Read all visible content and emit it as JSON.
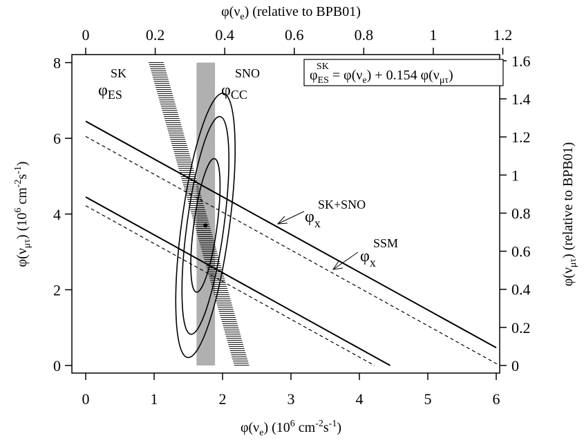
{
  "chart_data": {
    "type": "line",
    "xlabel": {
      "main": "φ(ν",
      "sub": "e",
      "unit": ") (10",
      "sup": "6",
      "tail": " cm",
      "sup2": "-2",
      "tail2": "s",
      "sup3": "-1",
      "end": ")"
    },
    "ylabel": {
      "main": "φ(ν",
      "sub": "μτ",
      "unit": ") (10",
      "sup": "6",
      "tail": " cm",
      "sup2": "-2",
      "tail2": "s",
      "sup3": "-1",
      "end": ")"
    },
    "top_xlabel": {
      "main": "φ(ν",
      "sub": "e",
      "end": ") (relative to BPB01)"
    },
    "right_ylabel": {
      "main": "φ(ν",
      "sub": "μτ",
      "end": ") (relative to BPB01)"
    },
    "xlim": [
      0,
      6
    ],
    "ylim": [
      0,
      8
    ],
    "x_ticks": [
      "0",
      "1",
      "2",
      "3",
      "4",
      "5",
      "6"
    ],
    "y_ticks": [
      "0",
      "2",
      "4",
      "6",
      "8"
    ],
    "top_ticks": [
      "0",
      "0.2",
      "0.4",
      "0.6",
      "0.8",
      "1",
      "1.2"
    ],
    "top_tick_values": [
      0,
      0.2,
      0.4,
      0.6,
      0.8,
      1.0,
      1.2
    ],
    "right_ticks": [
      "0",
      "0.2",
      "0.4",
      "0.6",
      "0.8",
      "1",
      "1.2",
      "1.4",
      "1.6"
    ],
    "right_tick_values": [
      0,
      0.2,
      0.4,
      0.6,
      0.8,
      1.0,
      1.2,
      1.4,
      1.6
    ],
    "series": [
      {
        "kind": "solid-line",
        "points": [
          [
            0,
            6.45
          ],
          [
            6,
            0.47
          ]
        ]
      },
      {
        "kind": "solid-line",
        "points": [
          [
            0,
            4.45
          ],
          [
            4.45,
            0.0
          ]
        ]
      },
      {
        "kind": "dashed-line",
        "points": [
          [
            0,
            6.05
          ],
          [
            6.05,
            0.0
          ]
        ]
      },
      {
        "kind": "dashed-line",
        "points": [
          [
            0,
            4.22
          ],
          [
            4.22,
            0.0
          ]
        ]
      }
    ],
    "sno_cc_band": {
      "x": [
        1.62,
        1.89
      ],
      "y": [
        0,
        8
      ]
    },
    "sk_es_band": {
      "points": [
        [
          1.03,
          8.0
        ],
        [
          2.28,
          0.0
        ]
      ],
      "width": 0.22
    },
    "ellipses": [
      {
        "center": [
          1.75,
          3.7
        ],
        "rx": 0.17,
        "ry": 1.78,
        "tilt": -0.11
      },
      {
        "center": [
          1.75,
          3.7
        ],
        "rx": 0.27,
        "ry": 2.9,
        "tilt": -0.11
      },
      {
        "center": [
          1.75,
          3.7
        ],
        "rx": 0.35,
        "ry": 3.52,
        "tilt": -0.11
      }
    ],
    "best_fit": [
      1.75,
      3.7
    ],
    "annotations": {
      "sk_label": {
        "main": "φ",
        "sub": "ES",
        "sup": "SK"
      },
      "sno_label": {
        "main": "φ",
        "sub": "CC",
        "sup": "SNO"
      },
      "sksno_label": {
        "main": "φ",
        "sub": "x",
        "sup": "SK+SNO"
      },
      "ssm_label": {
        "main": "φ",
        "sub": "x",
        "sup": "SSM"
      },
      "box_formula": {
        "lhs": "φ",
        "lhs_sub": "ES",
        "lhs_sup": "SK",
        "rhs1": " = φ(ν",
        "rhs1_sub": "e",
        "rhs2": ") + 0.154 φ(ν",
        "rhs2_sub": "μτ",
        "rhs3": ")"
      }
    }
  }
}
